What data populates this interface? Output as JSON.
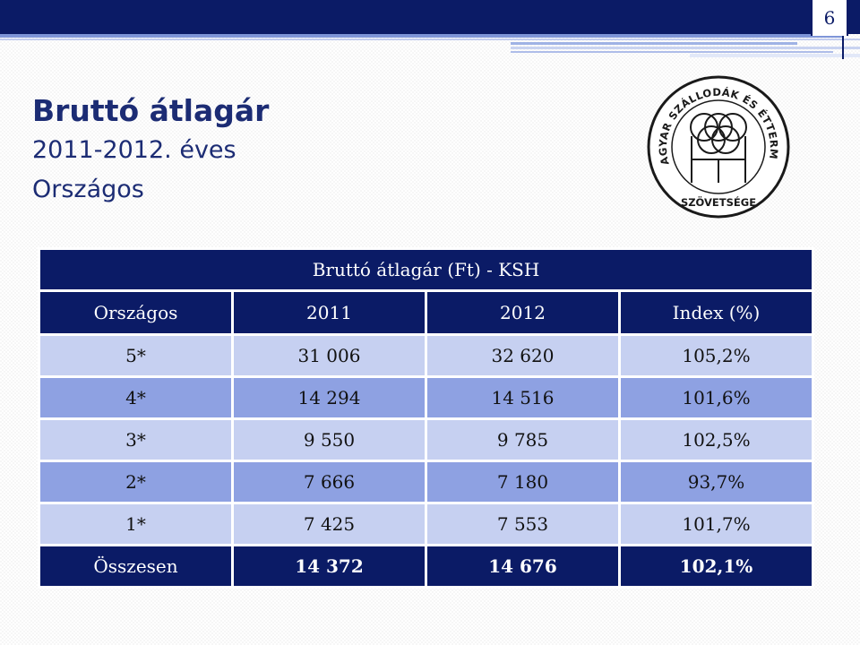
{
  "slide": {
    "page_number": "6",
    "title": "Bruttó átlagár",
    "subtitle_line1": "2011-2012. éves",
    "subtitle_line2": "Országos"
  },
  "logo": {
    "icon": "association-seal-icon",
    "ring_text": "MAGYAR SZÁLLODÁK ÉS ÉTTERMEK",
    "bottom_text": "SZÖVETSÉGE"
  },
  "table": {
    "caption": "Bruttó átlagár (Ft) - KSH",
    "headers": [
      "Országos",
      "2011",
      "2012",
      "Index (%)"
    ],
    "rows": [
      [
        "5*",
        "31 006",
        "32 620",
        "105,2%"
      ],
      [
        "4*",
        "14 294",
        "14 516",
        "101,6%"
      ],
      [
        "3*",
        "9 550",
        "9 785",
        "102,5%"
      ],
      [
        "2*",
        "7 666",
        "7 180",
        "93,7%"
      ],
      [
        "1*",
        "7 425",
        "7 553",
        "101,7%"
      ]
    ],
    "total": [
      "Összesen",
      "14 372",
      "14 676",
      "102,1%"
    ]
  },
  "colors": {
    "navy": "#0b1b66",
    "row_light": "#c6d0f1",
    "row_mid": "#8ea1e2",
    "title_text": "#1c2c74"
  }
}
